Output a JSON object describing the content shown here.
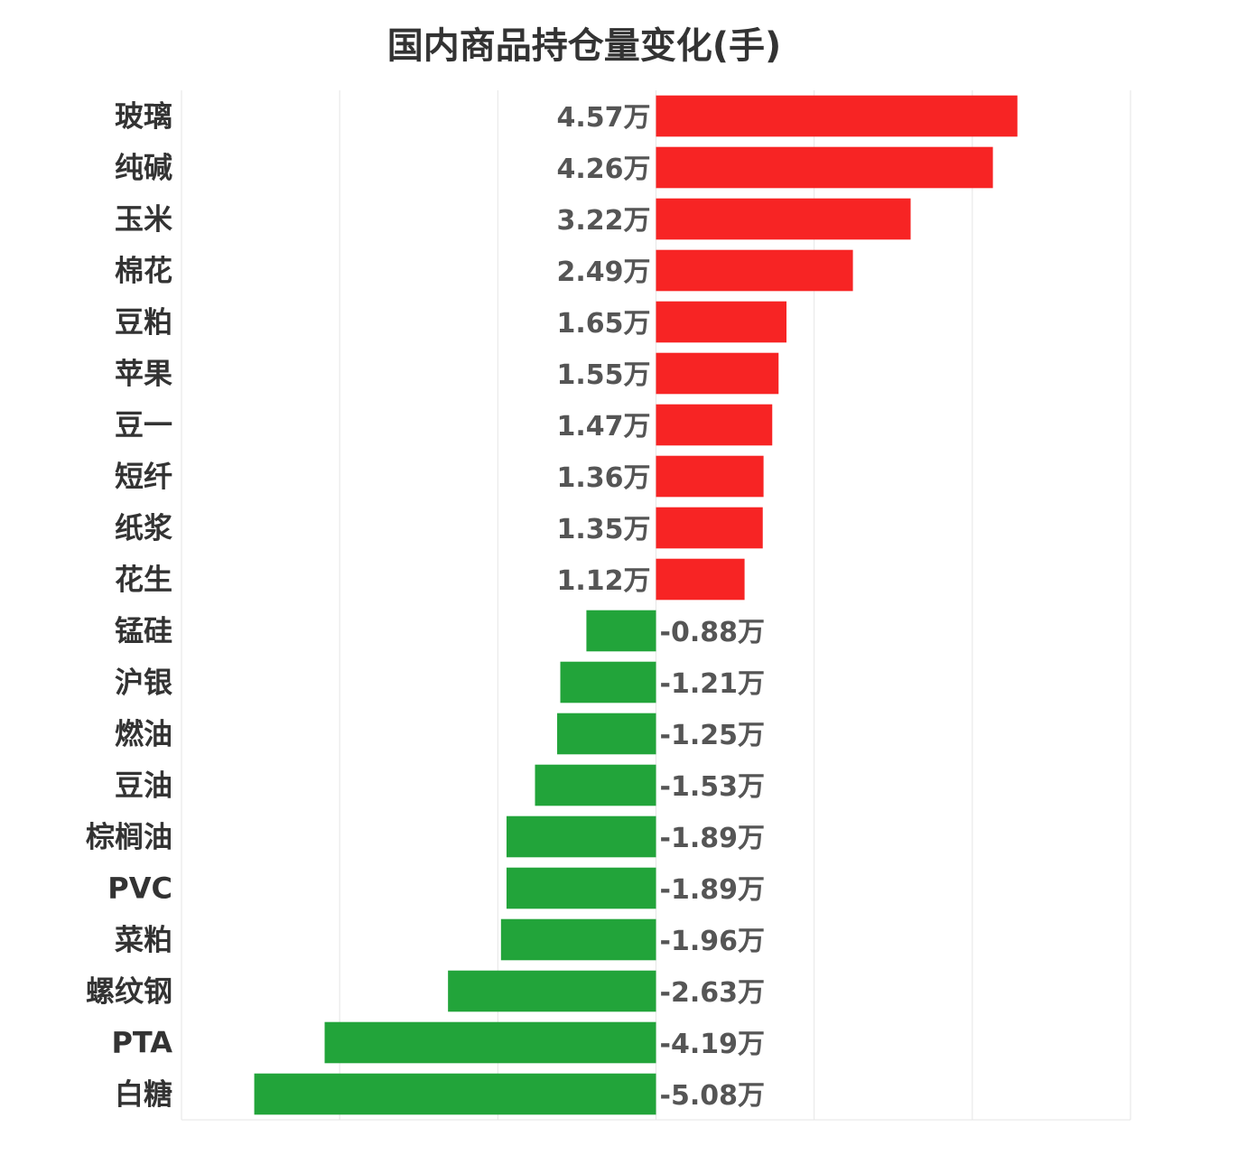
{
  "chart_data": {
    "type": "bar",
    "orientation": "horizontal",
    "title": "国内商品持仓量变化(手)",
    "unit": "万",
    "categories": [
      "玻璃",
      "纯碱",
      "玉米",
      "棉花",
      "豆粕",
      "苹果",
      "豆一",
      "短纤",
      "纸浆",
      "花生",
      "锰硅",
      "沪银",
      "燃油",
      "豆油",
      "棕榈油",
      "PVC",
      "菜粕",
      "螺纹钢",
      "PTA",
      "白糖"
    ],
    "values": [
      4.57,
      4.26,
      3.22,
      2.49,
      1.65,
      1.55,
      1.47,
      1.36,
      1.35,
      1.12,
      -0.88,
      -1.21,
      -1.25,
      -1.53,
      -1.89,
      -1.89,
      -1.96,
      -2.63,
      -4.19,
      -5.08
    ],
    "value_labels": [
      "4.57万",
      "4.26万",
      "3.22万",
      "2.49万",
      "1.65万",
      "1.55万",
      "1.47万",
      "1.36万",
      "1.35万",
      "1.12万",
      "-0.88万",
      "-1.21万",
      "-1.25万",
      "-1.53万",
      "-1.89万",
      "-1.89万",
      "-1.96万",
      "-2.63万",
      "-4.19万",
      "-5.08万"
    ],
    "xlim": [
      -6,
      6
    ],
    "grid": true,
    "colors": {
      "positive": "#f72424",
      "negative": "#22a43a"
    }
  }
}
